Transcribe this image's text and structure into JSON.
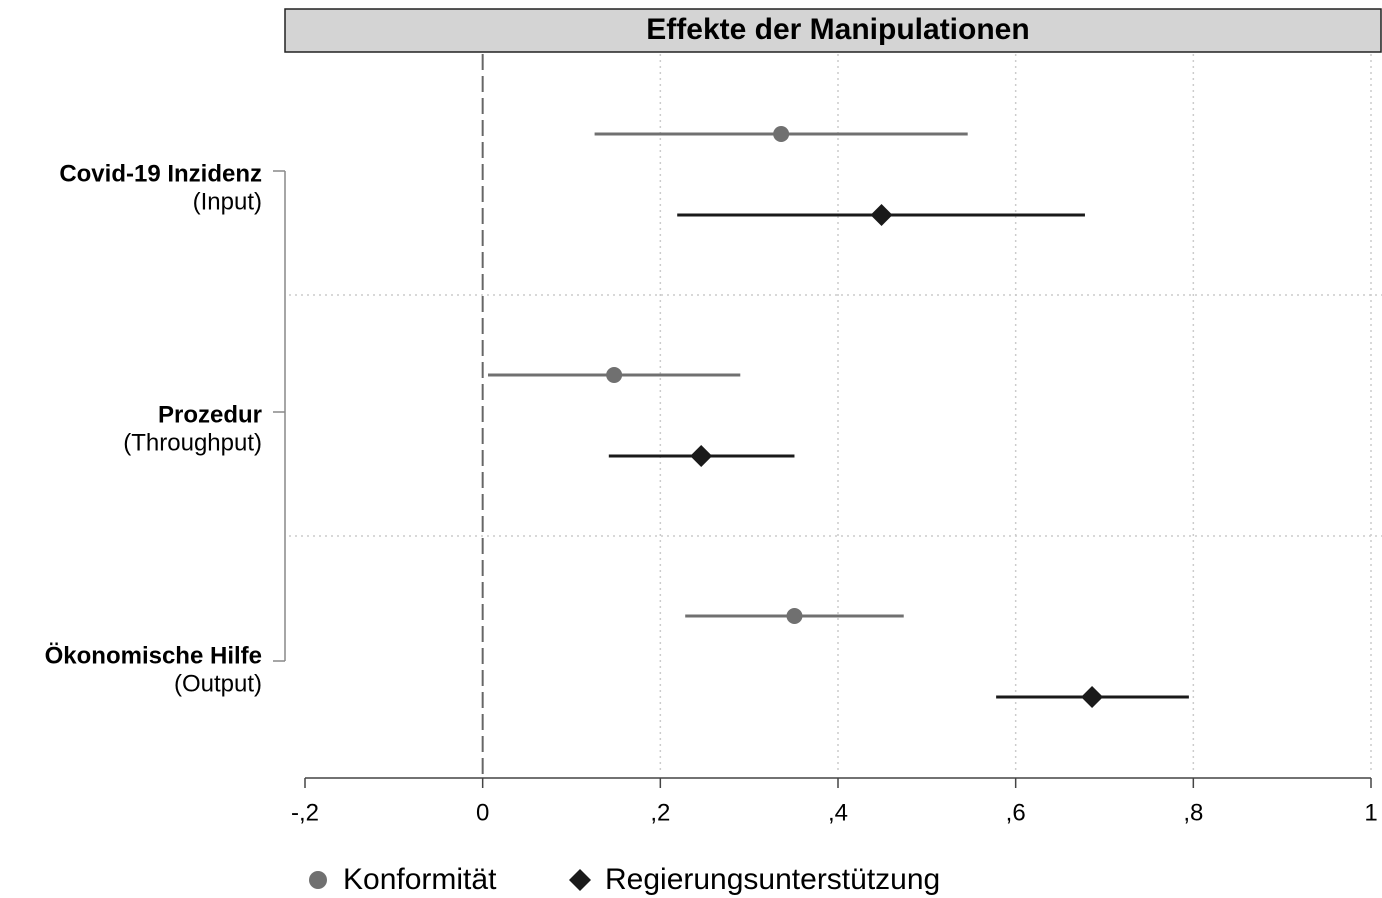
{
  "chart_data": {
    "type": "coefplot",
    "title": "Effekte der Manipulationen",
    "categories": [
      "Covid-19 Inzidenz",
      "Prozedur",
      "Ökonomische Hilfe"
    ],
    "category_sublabels": [
      "(Input)",
      "(Throughput)",
      "(Output)"
    ],
    "series": [
      {
        "name": "Konformität",
        "color": "#707070",
        "marker": "circle",
        "values": [
          0.336,
          0.148,
          0.351
        ],
        "ci_low": [
          0.126,
          0.006,
          0.228
        ],
        "ci_high": [
          0.546,
          0.29,
          0.474
        ]
      },
      {
        "name": "Regierungsunterstützung",
        "color": "#1a1a1a",
        "marker": "diamond",
        "values": [
          0.449,
          0.246,
          0.686
        ],
        "ci_low": [
          0.219,
          0.142,
          0.578
        ],
        "ci_high": [
          0.678,
          0.351,
          0.795
        ]
      }
    ],
    "xlim": [
      -0.2,
      1
    ],
    "xticks": [
      {
        "value": -0.2,
        "label": "-,2"
      },
      0,
      {
        "value": 0.2,
        "label": ",2"
      },
      {
        "value": 0.4,
        "label": ",4"
      },
      {
        "value": 0.6,
        "label": ",6"
      },
      {
        "value": 0.8,
        "label": ",8"
      },
      1
    ],
    "reference_line": 0,
    "grid": true,
    "legend": "bottom"
  }
}
